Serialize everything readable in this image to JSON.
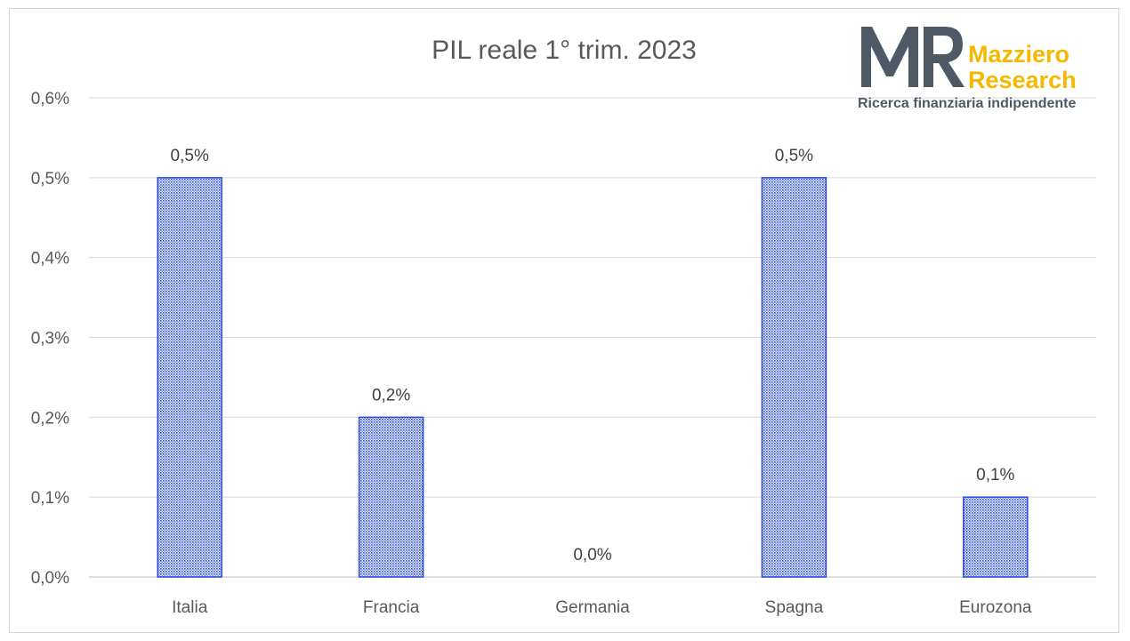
{
  "chart_data": {
    "type": "bar",
    "title": "PIL reale 1° trim. 2023",
    "categories": [
      "Italia",
      "Francia",
      "Germania",
      "Spagna",
      "Eurozona"
    ],
    "values": [
      0.5,
      0.2,
      0.0,
      0.5,
      0.1
    ],
    "data_labels": [
      "0,5%",
      "0,2%",
      "0,0%",
      "0,5%",
      "0,1%"
    ],
    "ylim": [
      0,
      0.6
    ],
    "yticks": [
      0.0,
      0.1,
      0.2,
      0.3,
      0.4,
      0.5,
      0.6
    ],
    "ytick_labels": [
      "0,0%",
      "0,1%",
      "0,2%",
      "0,3%",
      "0,4%",
      "0,5%",
      "0,6%"
    ],
    "grid": true,
    "legend": "none",
    "bar_color": "#2b4bdc"
  },
  "logo": {
    "mark": "MR",
    "name_line1": "Mazziero",
    "name_line2": "Research",
    "tagline": "Ricerca finanziaria indipendente",
    "mark_color": "#4d5a66",
    "accent_color": "#f5b800"
  }
}
